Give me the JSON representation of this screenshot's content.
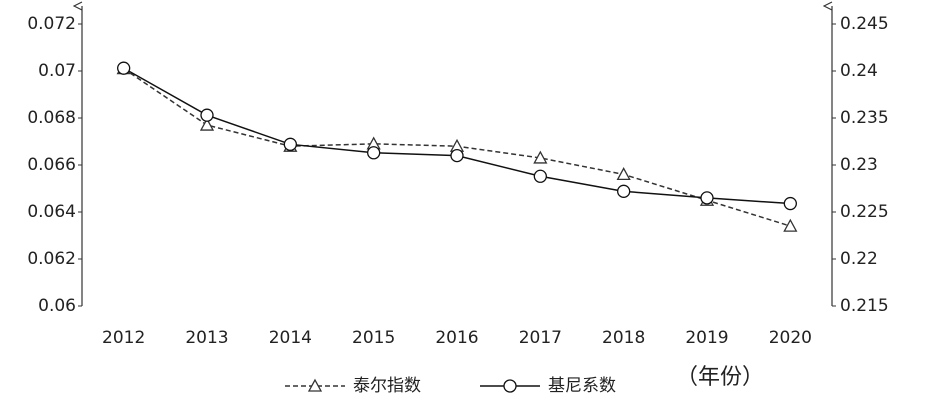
{
  "chart_data": {
    "type": "line",
    "categories": [
      "2012",
      "2013",
      "2014",
      "2015",
      "2016",
      "2017",
      "2018",
      "2019",
      "2020"
    ],
    "x_label": "（年份）",
    "ylim": [
      0.06,
      0.072
    ],
    "yticks": [
      0.06,
      0.062,
      0.064,
      0.066,
      0.068,
      0.07,
      0.072
    ],
    "y2lim": [
      0.215,
      0.245
    ],
    "y2ticks": [
      0.215,
      0.22,
      0.225,
      0.23,
      0.235,
      0.24,
      0.245
    ],
    "series": [
      {
        "name": "泰尔指数",
        "color": "#333333",
        "line_style": "dashed",
        "marker": "triangle",
        "values": [
          0.0701,
          0.0677,
          0.0668,
          0.0669,
          0.0668,
          0.0663,
          0.0656,
          0.0645,
          0.0634
        ]
      },
      {
        "name": "基尼系数",
        "color": "#111111",
        "line_style": "solid",
        "marker": "circle",
        "axis": "y2",
        "values": [
          0.2403,
          0.2353,
          0.2322,
          0.2313,
          0.231,
          0.2288,
          0.2272,
          0.2265,
          0.2259
        ]
      }
    ]
  }
}
